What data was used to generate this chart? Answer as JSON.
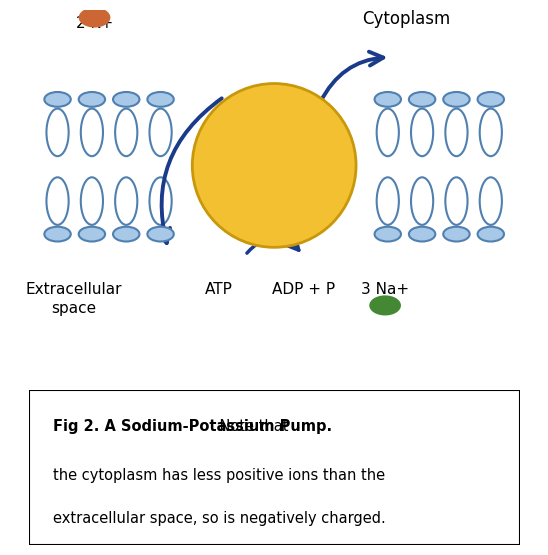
{
  "bg_color": "#ffffff",
  "membrane_color": "#a8c8e8",
  "membrane_outline": "#5080b0",
  "pump_color": "#f2c030",
  "pump_outline": "#c8980a",
  "arrow_color": "#1a3a8a",
  "k_ion_color": "#cc6633",
  "na_ion_color": "#448833",
  "title": "Cytoplasm",
  "label_extracellular": "Extracellular\nspace",
  "label_atp": "ATP",
  "label_adp": "ADP + P",
  "label_2k": "2 K+",
  "label_3na": "3 Na+",
  "caption_bold": "Fig 2. A Sodium-Potassium Pump.",
  "caption_normal": " Note that\nthe cytoplasm has less positive ions than the\nextracellular space, so is negatively charged.",
  "fig_width": 5.34,
  "fig_height": 5.52
}
